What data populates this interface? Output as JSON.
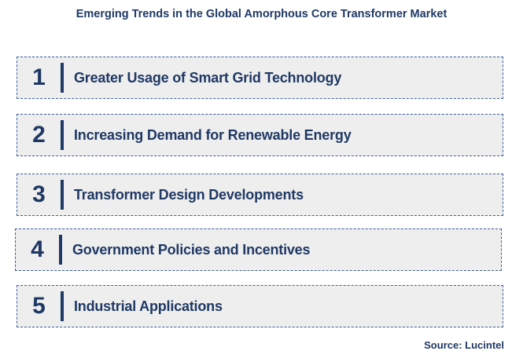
{
  "title": "Emerging Trends in the Global Amorphous Core Transformer Market",
  "items": [
    {
      "number": "1",
      "label": "Greater Usage of Smart Grid Technology"
    },
    {
      "number": "2",
      "label": "Increasing Demand for Renewable Energy"
    },
    {
      "number": "3",
      "label": "Transformer Design Developments"
    },
    {
      "number": "4",
      "label": "Government Policies and Incentives"
    },
    {
      "number": "5",
      "label": "Industrial Applications"
    }
  ],
  "source": "Source: Lucintel",
  "colors": {
    "text": "#1f3864",
    "box_fill": "#eeeeee",
    "box_border": "#3b5f9a"
  }
}
